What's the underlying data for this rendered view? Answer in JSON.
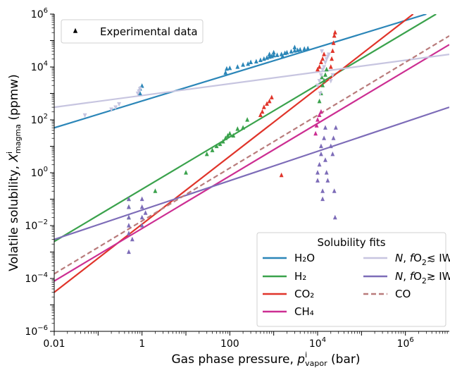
{
  "chart_data": {
    "type": "scatter",
    "xlabel": {
      "main": "Gas phase pressure, ",
      "sym": "p",
      "sup": "i",
      "sub": "vapor",
      "unit": " (bar)"
    },
    "ylabel": {
      "main": "Volatile solubility, ",
      "sym": "X",
      "sup": "i",
      "sub": "magma",
      "unit": " (ppmw)"
    },
    "x_scale": "log",
    "y_scale": "log",
    "xlim": [
      0.01,
      10000000
    ],
    "ylim": [
      1e-06,
      1000000
    ],
    "x_ticks": [
      {
        "value": 0.01,
        "label": "0.01"
      },
      {
        "value": 1,
        "label": "1"
      },
      {
        "value": 100,
        "label": "100"
      },
      {
        "value": 10000,
        "base": "10",
        "exp": "4"
      },
      {
        "value": 1000000,
        "base": "10",
        "exp": "6"
      }
    ],
    "y_ticks": [
      {
        "value": 1e-06,
        "base": "10",
        "exp": "−6"
      },
      {
        "value": 0.0001,
        "base": "10",
        "exp": "−4"
      },
      {
        "value": 0.01,
        "base": "10",
        "exp": "−2"
      },
      {
        "value": 1,
        "base": "10",
        "exp": "0"
      },
      {
        "value": 100,
        "base": "10",
        "exp": "2"
      },
      {
        "value": 10000,
        "base": "10",
        "exp": "4"
      },
      {
        "value": 1000000,
        "base": "10",
        "exp": "6"
      }
    ],
    "grid": false,
    "legend_scatter": {
      "label": "Experimental data",
      "placement": "top-left"
    },
    "legend_fits": {
      "title": "Solubility fits",
      "placement": "bottom-right",
      "entries": [
        {
          "key": "h2o",
          "label": "H₂O"
        },
        {
          "key": "h2",
          "label": "H₂"
        },
        {
          "key": "co2",
          "label": "CO₂"
        },
        {
          "key": "ch4",
          "label": "CH₄"
        },
        {
          "key": "n_red",
          "pre": "N, ",
          "f": "f",
          "o": "O",
          "sub": "2",
          "post": "≲ IW"
        },
        {
          "key": "n_ox",
          "pre": "N, ",
          "f": "f",
          "o": "O",
          "sub": "2",
          "post": "≳ IW"
        },
        {
          "key": "co",
          "label": "CO"
        }
      ]
    },
    "series": [
      {
        "key": "h2o",
        "color": "#2b86b8",
        "dashed": false,
        "fit": [
          [
            0.01,
            50
          ],
          [
            3000000,
            1000000
          ]
        ],
        "marker": "triangle-up",
        "points": [
          [
            0.9,
            1500
          ],
          [
            1,
            1900
          ],
          [
            0.9,
            1000
          ],
          [
            80,
            6000
          ],
          [
            85,
            8500
          ],
          [
            100,
            9000
          ],
          [
            150,
            10000
          ],
          [
            200,
            12000
          ],
          [
            260,
            13000
          ],
          [
            300,
            15000
          ],
          [
            400,
            16000
          ],
          [
            500,
            18000
          ],
          [
            600,
            20000
          ],
          [
            700,
            22000
          ],
          [
            800,
            24000
          ],
          [
            900,
            25000
          ],
          [
            1000,
            27000
          ],
          [
            1200,
            28000
          ],
          [
            1500,
            30000
          ],
          [
            1800,
            33000
          ],
          [
            2000,
            35000
          ],
          [
            2500,
            38000
          ],
          [
            3000,
            41000
          ],
          [
            3500,
            43000
          ],
          [
            4000,
            45000
          ],
          [
            5000,
            48000
          ],
          [
            6000,
            50000
          ],
          [
            800,
            30000
          ],
          [
            1000,
            35000
          ],
          [
            3000,
            55000
          ],
          [
            1600,
            25000
          ]
        ]
      },
      {
        "key": "h2",
        "color": "#3aa24c",
        "dashed": false,
        "fit": [
          [
            0.01,
            0.0025
          ],
          [
            5000000,
            1000000
          ]
        ],
        "marker": "triangle-up",
        "points": [
          [
            0.5,
            0.1
          ],
          [
            0.5,
            0.05
          ],
          [
            0.5,
            0.02
          ],
          [
            2,
            0.2
          ],
          [
            10,
            1
          ],
          [
            30,
            5
          ],
          [
            40,
            7
          ],
          [
            50,
            10
          ],
          [
            60,
            12
          ],
          [
            70,
            15
          ],
          [
            80,
            20
          ],
          [
            90,
            25
          ],
          [
            100,
            30
          ],
          [
            120,
            25
          ],
          [
            150,
            45
          ],
          [
            200,
            50
          ],
          [
            250,
            100
          ],
          [
            12000,
            1000
          ],
          [
            13000,
            2000
          ],
          [
            14000,
            3000
          ],
          [
            15000,
            5000
          ],
          [
            16000,
            8000
          ],
          [
            11000,
            500
          ],
          [
            12500,
            4000
          ]
        ]
      },
      {
        "key": "co2",
        "color": "#e0342a",
        "dashed": false,
        "fit": [
          [
            0.01,
            3e-05
          ],
          [
            1500000,
            1000000
          ]
        ],
        "marker": "triangle-up",
        "points": [
          [
            500,
            150
          ],
          [
            550,
            200
          ],
          [
            600,
            300
          ],
          [
            700,
            400
          ],
          [
            800,
            500
          ],
          [
            900,
            700
          ],
          [
            1500,
            0.8
          ],
          [
            10000,
            8000
          ],
          [
            11000,
            10000
          ],
          [
            12000,
            15000
          ],
          [
            13000,
            20000
          ],
          [
            14000,
            30000
          ],
          [
            20000,
            10000
          ],
          [
            21000,
            20000
          ],
          [
            22000,
            40000
          ],
          [
            23000,
            80000
          ],
          [
            24000,
            150000
          ],
          [
            25000,
            200000
          ]
        ]
      },
      {
        "key": "ch4",
        "color": "#cc2e92",
        "dashed": false,
        "fit": [
          [
            0.01,
            8e-05
          ],
          [
            10000000,
            70000
          ]
        ],
        "marker": "triangle-up",
        "points": [
          [
            9000,
            30
          ],
          [
            9500,
            60
          ],
          [
            10000,
            100
          ],
          [
            11000,
            150
          ],
          [
            12000,
            200
          ]
        ]
      },
      {
        "key": "n_red",
        "color": "#c7c5e0",
        "dashed": false,
        "fit": [
          [
            0.01,
            300
          ],
          [
            10000000,
            30000
          ]
        ],
        "marker": "triangle-down",
        "points": [
          [
            0.05,
            150
          ],
          [
            0.2,
            250
          ],
          [
            0.25,
            300
          ],
          [
            0.3,
            400
          ],
          [
            0.8,
            1000
          ],
          [
            0.85,
            1200
          ],
          [
            0.9,
            1500
          ],
          [
            10000,
            2000
          ],
          [
            11000,
            3000
          ],
          [
            12000,
            5000
          ],
          [
            13000,
            8000
          ],
          [
            14000,
            10000
          ],
          [
            15000,
            15000
          ],
          [
            16000,
            20000
          ],
          [
            17000,
            25000
          ],
          [
            18000,
            30000
          ],
          [
            20000,
            3000
          ],
          [
            22000,
            5000
          ],
          [
            11500,
            1000
          ],
          [
            12500,
            40000
          ]
        ]
      },
      {
        "key": "n_ox",
        "color": "#7d6cb8",
        "dashed": false,
        "fit": [
          [
            0.01,
            0.003
          ],
          [
            10000000,
            300
          ]
        ],
        "marker": "triangle-up",
        "points": [
          [
            0.5,
            0.1
          ],
          [
            0.5,
            0.05
          ],
          [
            0.5,
            0.02
          ],
          [
            0.5,
            0.01
          ],
          [
            0.5,
            0.005
          ],
          [
            0.5,
            0.001
          ],
          [
            0.6,
            0.003
          ],
          [
            1,
            0.01
          ],
          [
            1,
            0.02
          ],
          [
            1,
            0.05
          ],
          [
            1,
            0.1
          ],
          [
            1.2,
            0.03
          ],
          [
            10000,
            0.5
          ],
          [
            10000,
            1
          ],
          [
            11000,
            2
          ],
          [
            12000,
            5
          ],
          [
            12000,
            10
          ],
          [
            13000,
            0.2
          ],
          [
            13000,
            0.1
          ],
          [
            14000,
            20
          ],
          [
            15000,
            50
          ],
          [
            15000,
            3
          ],
          [
            16000,
            1
          ],
          [
            17000,
            0.5
          ],
          [
            20000,
            10
          ],
          [
            22000,
            5
          ],
          [
            23000,
            20
          ],
          [
            24000,
            0.2
          ],
          [
            25000,
            0.02
          ],
          [
            26000,
            50
          ]
        ]
      },
      {
        "key": "co",
        "color": "#b97b7b",
        "dashed": true,
        "fit": [
          [
            0.01,
            0.00015
          ],
          [
            10000000,
            150000
          ]
        ],
        "marker": "none",
        "points": []
      }
    ]
  }
}
